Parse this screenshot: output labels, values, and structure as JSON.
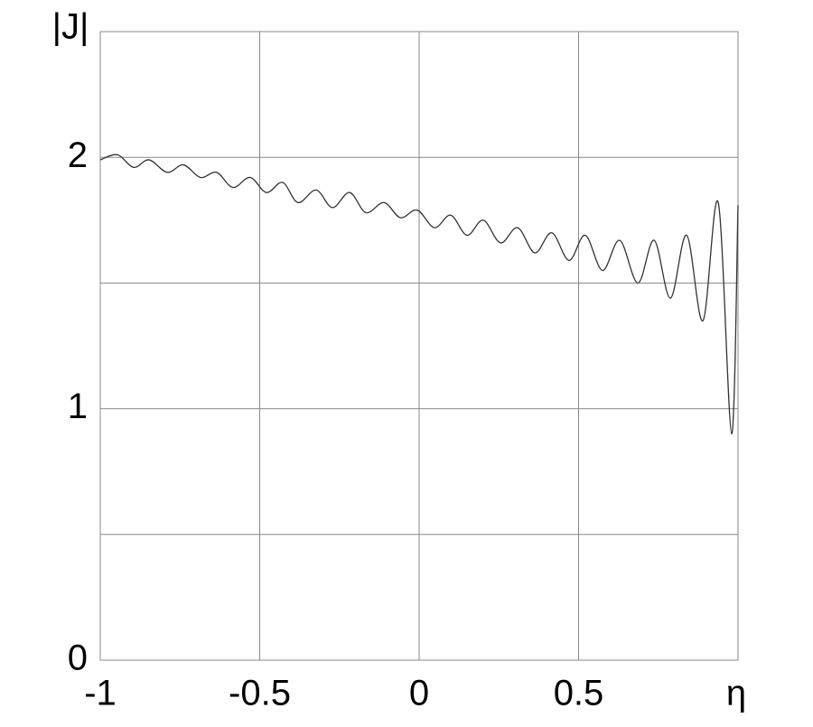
{
  "chart_data": {
    "type": "line",
    "xlabel": "η",
    "ylabel": "|J|",
    "x": [
      -1,
      -0.946,
      -0.895,
      -0.847,
      -0.79,
      -0.739,
      -0.686,
      -0.635,
      -0.584,
      -0.53,
      -0.479,
      -0.428,
      -0.38,
      -0.323,
      -0.272,
      -0.218,
      -0.167,
      -0.11,
      -0.059,
      -0.006,
      0.048,
      0.099,
      0.15,
      0.201,
      0.255,
      0.309,
      0.363,
      0.416,
      0.47,
      0.521,
      0.575,
      0.629,
      0.686,
      0.737,
      0.788,
      0.839,
      0.89,
      0.938,
      0.98,
      1.0
    ],
    "series": [
      {
        "color": "#333333",
        "values": [
          1.99,
          2.01,
          1.96,
          1.99,
          1.94,
          1.97,
          1.92,
          1.94,
          1.88,
          1.92,
          1.86,
          1.9,
          1.82,
          1.87,
          1.8,
          1.86,
          1.78,
          1.82,
          1.76,
          1.79,
          1.72,
          1.77,
          1.69,
          1.75,
          1.66,
          1.72,
          1.62,
          1.7,
          1.59,
          1.69,
          1.55,
          1.67,
          1.5,
          1.67,
          1.44,
          1.69,
          1.35,
          1.82,
          0.9,
          1.81
        ]
      }
    ],
    "xlim": [
      -1,
      1
    ],
    "ylim": [
      0,
      2.5
    ],
    "xticks": [
      -1,
      -0.5,
      0,
      0.5
    ],
    "yticks": [
      0,
      1,
      2
    ],
    "minor_xticks": [
      1
    ],
    "minor_yticks": [
      0.5,
      1.5,
      2.5
    ],
    "grid": true
  }
}
